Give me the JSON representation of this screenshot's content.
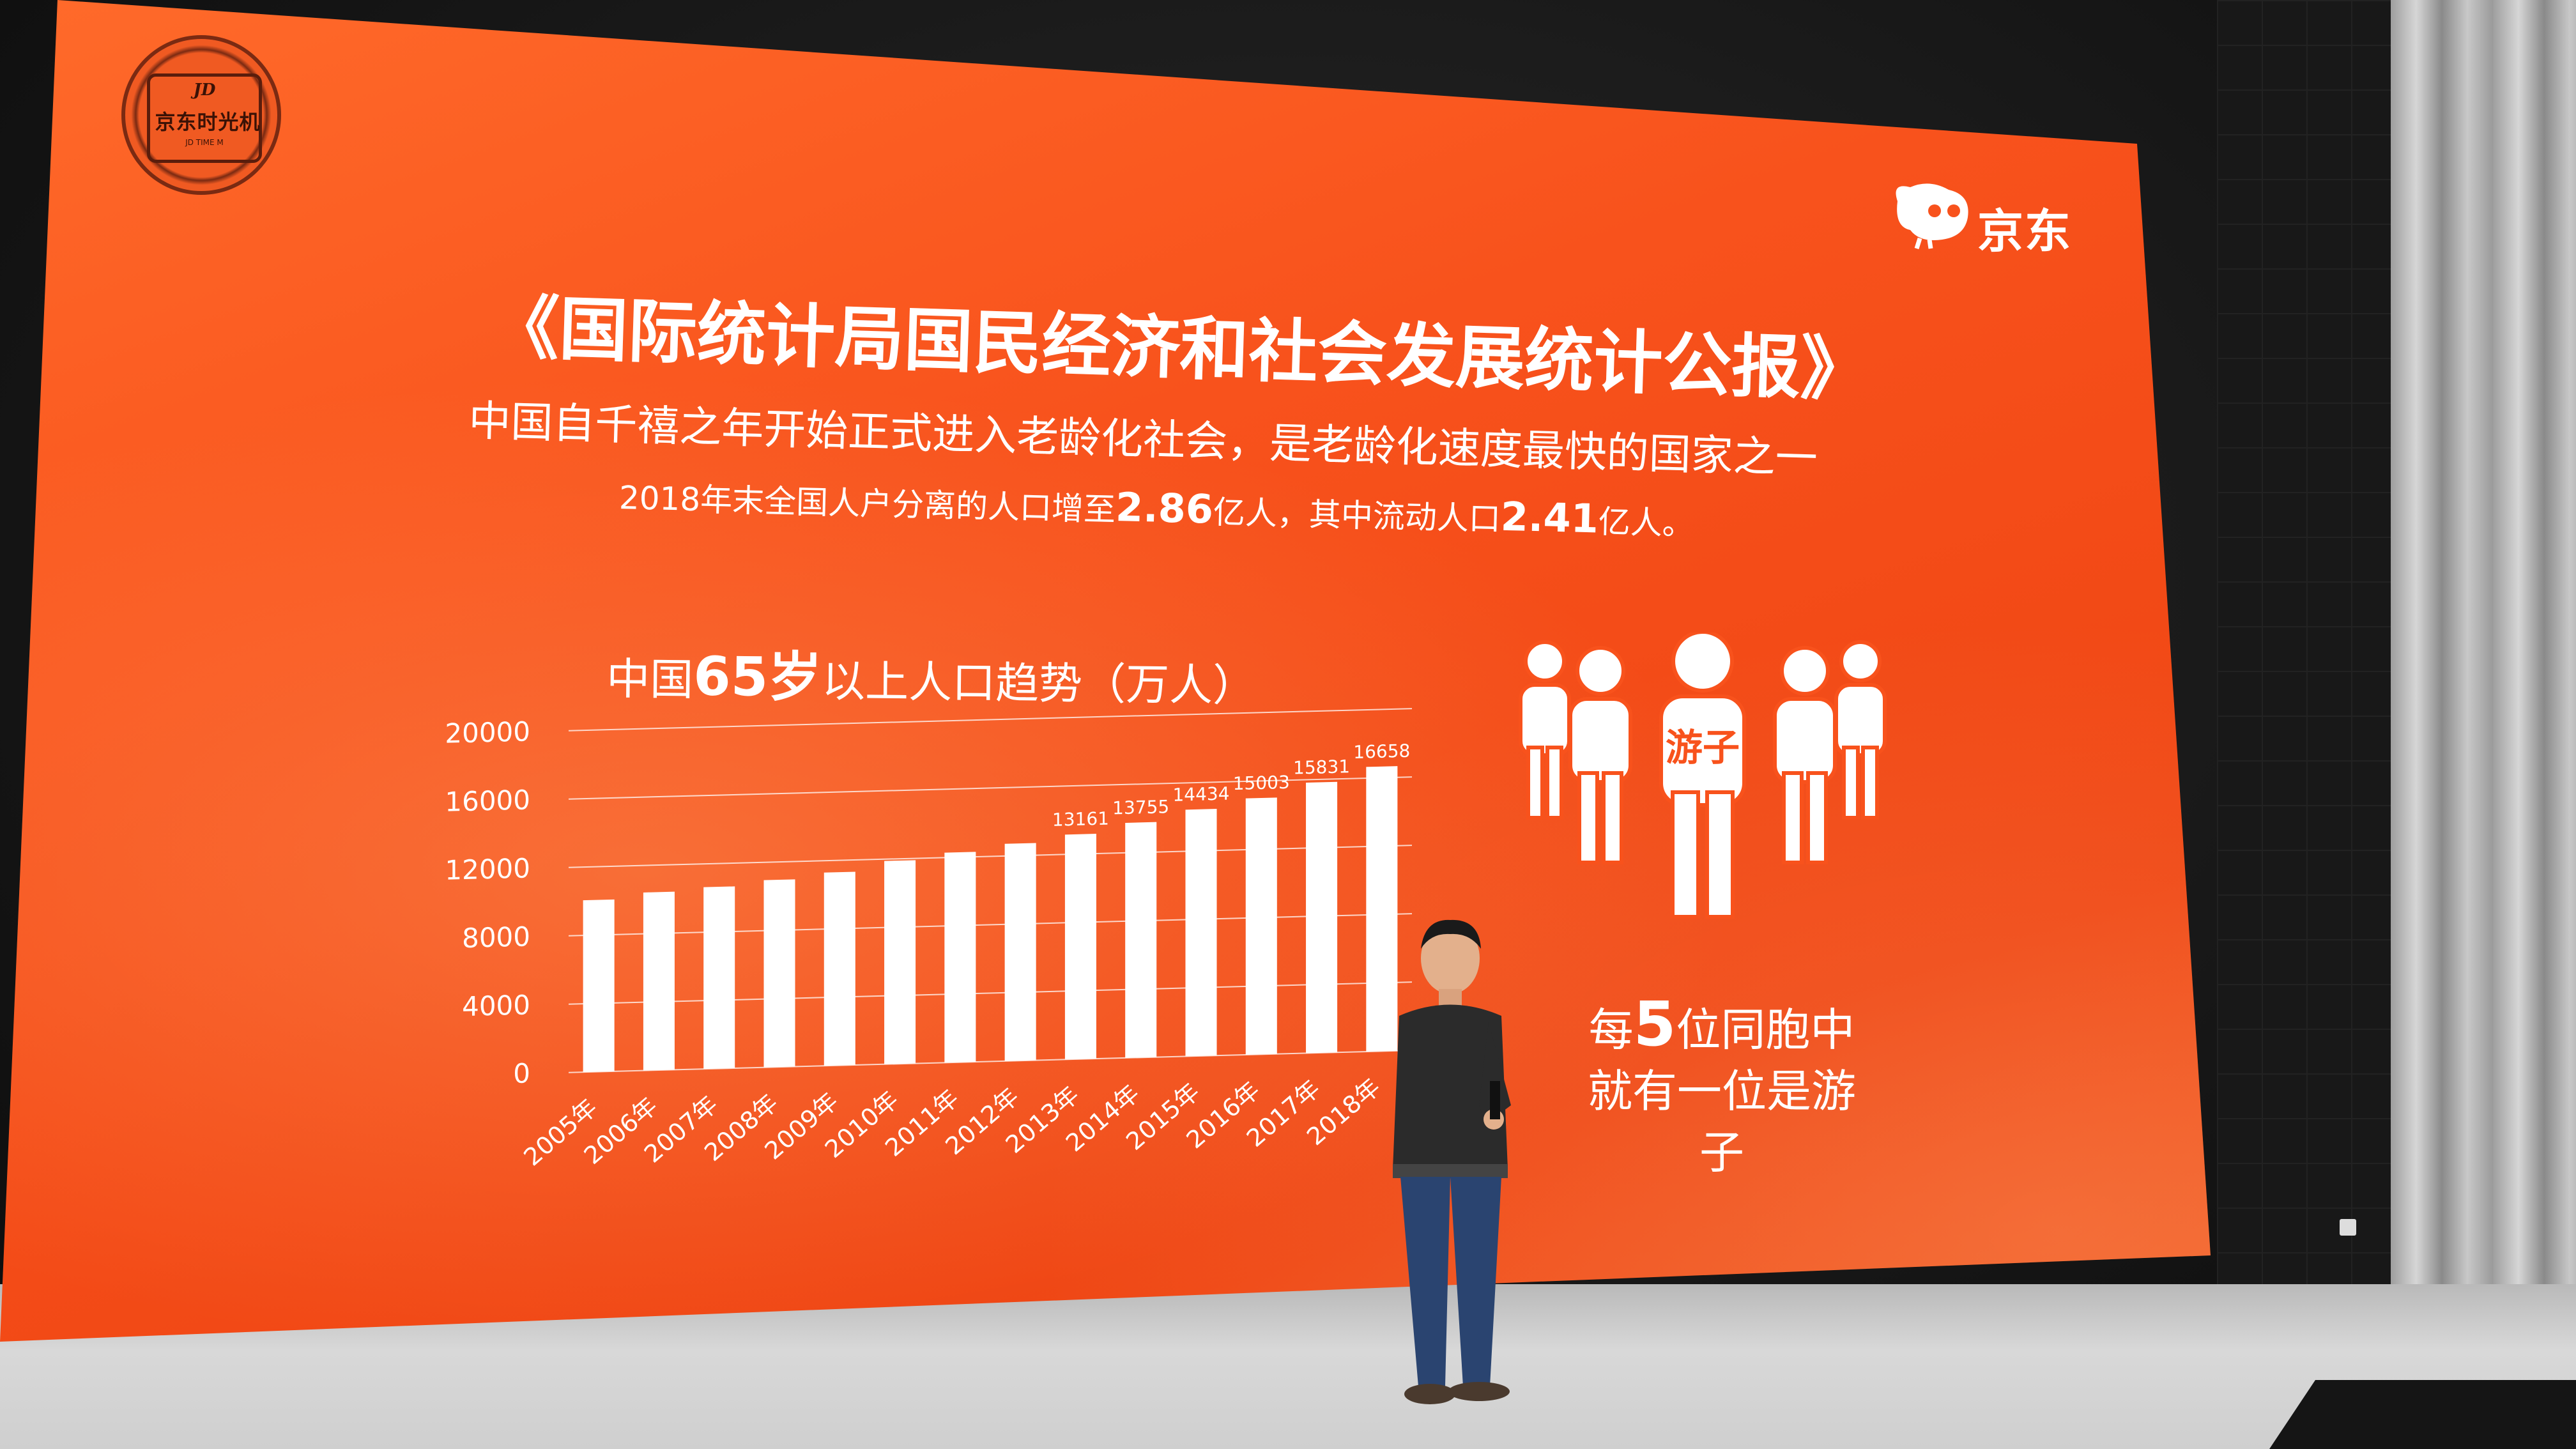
{
  "badge": {
    "top": "JD",
    "main": "京东时光机",
    "bottom": "JD TIME M"
  },
  "brand": {
    "logo_text": "京东"
  },
  "title": "《国际统计局国民经济和社会发展统计公报》",
  "subtitle": "中国自千禧之年开始正式进入老龄化社会，是老龄化速度最快的国家之一",
  "stat_line": {
    "part1": "2018年末全国人户分离的人口增至",
    "value1": "2.86",
    "part2": "亿人，其中流动人口",
    "value2": "2.41",
    "part3": "亿人。"
  },
  "chart_title": {
    "prefix": "中国",
    "highlight": "65岁",
    "suffix": "以上人口趋势（万人）"
  },
  "chart_data": {
    "type": "bar",
    "title": "中国65岁以上人口趋势（万人）",
    "categories": [
      "2005年",
      "2006年",
      "2007年",
      "2008年",
      "2009年",
      "2010年",
      "2011年",
      "2012年",
      "2013年",
      "2014年",
      "2015年",
      "2016年",
      "2017年",
      "2018年"
    ],
    "values": [
      10055,
      10419,
      10636,
      10956,
      11307,
      11894,
      12288,
      12714,
      13161,
      13755,
      14434,
      15003,
      15831,
      16658
    ],
    "value_labels": [
      "",
      "",
      "",
      "",
      "",
      "",
      "",
      "",
      "13161",
      "13755",
      "14434",
      "15003",
      "15831",
      "16658"
    ],
    "yticks": [
      0,
      4000,
      8000,
      12000,
      16000,
      20000
    ],
    "ylim": [
      0,
      20000
    ],
    "grid": true,
    "colors": {
      "bar": "#ffffff",
      "grid": "#ffffff",
      "text": "#ffffff"
    }
  },
  "people": {
    "center_label": "游子"
  },
  "callout": {
    "line1_prefix": "每",
    "line1_number": "5",
    "line1_suffix": "位同胞中",
    "line2": "就有一位是游子"
  },
  "colors": {
    "slide_orange": "#f8521c",
    "text": "#ffffff"
  }
}
